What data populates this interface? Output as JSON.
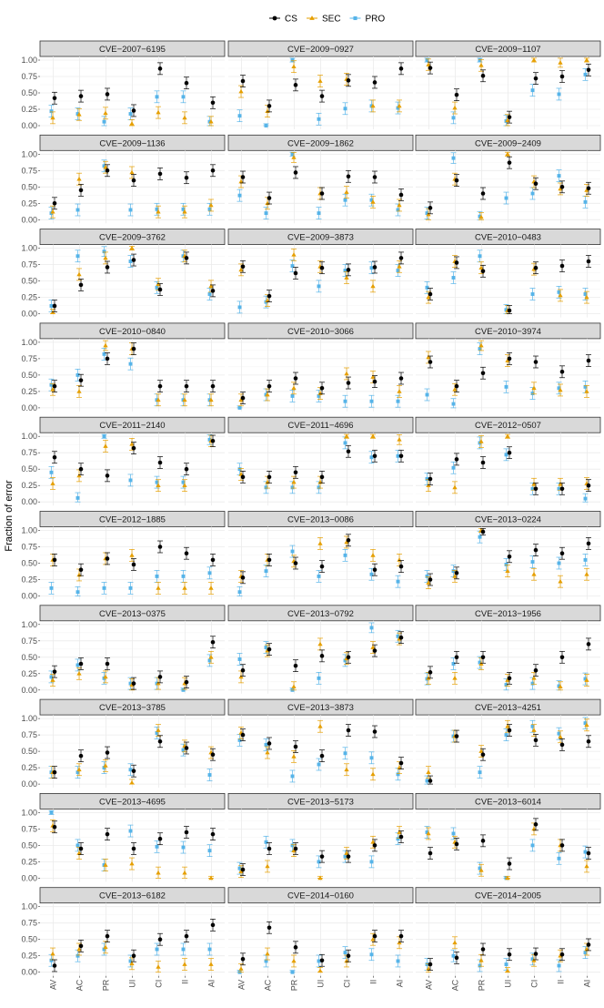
{
  "chart_data": {
    "type": "scatter",
    "subtype": "point-with-errorbars-faceted",
    "ylabel": "Fraction of error",
    "xlabel": "",
    "ylim": [
      0,
      1
    ],
    "yticks": [
      0.0,
      0.25,
      0.5,
      0.75,
      1.0
    ],
    "ytick_labels": [
      "0.00",
      "0.25",
      "0.50",
      "0.75",
      "1.00"
    ],
    "categories": [
      "AV",
      "AC",
      "PR",
      "UI",
      "CI",
      "II",
      "AI"
    ],
    "legend_position": "top",
    "series": [
      {
        "name": "CS",
        "color": "#000000",
        "shape": "circle"
      },
      {
        "name": "SEC",
        "color": "#E69F00",
        "shape": "triangle"
      },
      {
        "name": "PRO",
        "color": "#56B4E9",
        "shape": "square"
      }
    ],
    "panels": [
      {
        "title": "CVE−2007−6195",
        "CS": [
          0.42,
          0.45,
          0.48,
          0.23,
          0.87,
          0.65,
          0.35
        ],
        "SEC": [
          0.12,
          0.17,
          0.19,
          0.03,
          0.2,
          0.12,
          0.06
        ],
        "PRO": [
          0.22,
          0.18,
          0.06,
          0.18,
          0.44,
          0.44,
          0.06
        ]
      },
      {
        "title": "CVE−2009−0927",
        "CS": [
          0.68,
          0.3,
          0.62,
          0.45,
          0.69,
          0.66,
          0.87
        ],
        "SEC": [
          0.52,
          0.22,
          0.9,
          0.68,
          0.71,
          0.3,
          0.3
        ],
        "PRO": [
          0.15,
          0.0,
          1.0,
          0.1,
          0.26,
          0.3,
          0.27
        ]
      },
      {
        "title": "CVE−2009−1107",
        "CS": [
          0.88,
          0.47,
          0.76,
          0.13,
          0.72,
          0.75,
          0.85
        ],
        "SEC": [
          0.93,
          0.27,
          0.92,
          0.08,
          1.0,
          0.96,
          1.0
        ],
        "PRO": [
          1.0,
          0.12,
          1.0,
          0.07,
          0.54,
          0.48,
          0.78
        ]
      },
      {
        "title": "CVE−2009−1136",
        "CS": [
          0.25,
          0.45,
          0.75,
          0.6,
          0.7,
          0.64,
          0.75
        ],
        "SEC": [
          0.12,
          0.62,
          0.8,
          0.72,
          0.12,
          0.12,
          0.22
        ],
        "PRO": [
          0.1,
          0.15,
          0.82,
          0.15,
          0.16,
          0.16,
          0.16
        ]
      },
      {
        "title": "CVE−2009−1862",
        "CS": [
          0.65,
          0.33,
          0.72,
          0.4,
          0.66,
          0.65,
          0.38
        ],
        "SEC": [
          0.58,
          0.25,
          0.95,
          0.4,
          0.42,
          0.27,
          0.22
        ],
        "PRO": [
          0.37,
          0.1,
          1.0,
          0.1,
          0.3,
          0.3,
          0.15
        ]
      },
      {
        "title": "CVE−2009−2409",
        "CS": [
          0.18,
          0.6,
          0.4,
          0.87,
          0.55,
          0.5,
          0.48
        ],
        "SEC": [
          0.08,
          0.62,
          0.04,
          1.0,
          0.58,
          0.47,
          0.45
        ],
        "PRO": [
          0.1,
          0.94,
          0.05,
          0.33,
          0.4,
          0.67,
          0.27
        ]
      },
      {
        "title": "CVE−2009−3762",
        "CS": [
          0.12,
          0.44,
          0.71,
          0.82,
          0.37,
          0.85,
          0.35
        ],
        "SEC": [
          0.02,
          0.6,
          0.85,
          1.0,
          0.45,
          0.88,
          0.42
        ],
        "PRO": [
          0.12,
          0.88,
          0.95,
          0.8,
          0.4,
          0.88,
          0.3
        ]
      },
      {
        "title": "CVE−2009−3873",
        "CS": [
          0.72,
          0.27,
          0.62,
          0.7,
          0.67,
          0.71,
          0.85
        ],
        "SEC": [
          0.67,
          0.2,
          0.9,
          0.72,
          0.55,
          0.42,
          0.72
        ],
        "PRO": [
          0.1,
          0.18,
          0.73,
          0.42,
          0.66,
          0.7,
          0.66
        ]
      },
      {
        "title": "CVE−2010−0483",
        "CS": [
          0.3,
          0.78,
          0.65,
          0.05,
          0.7,
          0.73,
          0.8
        ],
        "SEC": [
          0.25,
          0.8,
          0.7,
          0.05,
          0.68,
          0.28,
          0.25
        ],
        "PRO": [
          0.4,
          0.55,
          0.88,
          0.06,
          0.3,
          0.33,
          0.3
        ]
      },
      {
        "title": "CVE−2010−0840",
        "CS": [
          0.33,
          0.42,
          0.75,
          0.9,
          0.33,
          0.33,
          0.33
        ],
        "SEC": [
          0.28,
          0.25,
          0.95,
          0.9,
          0.12,
          0.12,
          0.12
        ],
        "PRO": [
          0.35,
          0.5,
          0.82,
          0.67,
          0.12,
          0.12,
          0.12
        ]
      },
      {
        "title": "CVE−2010−3066",
        "CS": [
          0.15,
          0.33,
          0.45,
          0.3,
          0.38,
          0.4,
          0.45
        ],
        "SEC": [
          0.12,
          0.2,
          0.3,
          0.22,
          0.52,
          0.47,
          0.25
        ],
        "PRO": [
          0.0,
          0.2,
          0.18,
          0.18,
          0.1,
          0.1,
          0.1
        ]
      },
      {
        "title": "CVE−2010−3974",
        "CS": [
          0.7,
          0.33,
          0.53,
          0.75,
          0.7,
          0.55,
          0.72
        ],
        "SEC": [
          0.77,
          0.28,
          0.95,
          0.72,
          0.3,
          0.27,
          0.25
        ],
        "PRO": [
          0.2,
          0.06,
          0.9,
          0.32,
          0.22,
          0.3,
          0.32
        ]
      },
      {
        "title": "CVE−2011−2140",
        "CS": [
          0.68,
          0.5,
          0.4,
          0.82,
          0.6,
          0.5,
          0.93
        ],
        "SEC": [
          0.28,
          0.4,
          0.85,
          0.88,
          0.25,
          0.25,
          0.93
        ],
        "PRO": [
          0.45,
          0.06,
          1.0,
          0.33,
          0.3,
          0.3,
          0.95
        ]
      },
      {
        "title": "CVE−2011−4696",
        "CS": [
          0.38,
          0.38,
          0.45,
          0.38,
          0.77,
          0.7,
          0.7
        ],
        "SEC": [
          0.42,
          0.3,
          0.3,
          0.3,
          1.0,
          1.0,
          0.95
        ],
        "PRO": [
          0.5,
          0.22,
          0.22,
          0.22,
          0.9,
          0.68,
          0.7
        ]
      },
      {
        "title": "CVE−2012−0507",
        "CS": [
          0.35,
          0.65,
          0.6,
          0.75,
          0.2,
          0.2,
          0.25
        ],
        "SEC": [
          0.25,
          0.22,
          0.92,
          1.0,
          0.27,
          0.27,
          0.28
        ],
        "PRO": [
          0.35,
          0.52,
          0.9,
          0.72,
          0.2,
          0.2,
          0.05
        ]
      },
      {
        "title": "CVE−2012−1885",
        "CS": [
          0.55,
          0.4,
          0.57,
          0.48,
          0.75,
          0.65,
          0.55
        ],
        "SEC": [
          0.55,
          0.32,
          0.57,
          0.62,
          0.12,
          0.12,
          0.12
        ],
        "PRO": [
          0.12,
          0.06,
          0.12,
          0.12,
          0.3,
          0.3,
          0.35
        ]
      },
      {
        "title": "CVE−2013−0086",
        "CS": [
          0.28,
          0.55,
          0.5,
          0.45,
          0.85,
          0.4,
          0.45
        ],
        "SEC": [
          0.3,
          0.55,
          0.53,
          0.8,
          0.82,
          0.62,
          0.55
        ],
        "PRO": [
          0.06,
          0.38,
          0.68,
          0.3,
          0.62,
          0.33,
          0.22
        ]
      },
      {
        "title": "CVE−2013−0224",
        "CS": [
          0.25,
          0.35,
          0.98,
          0.6,
          0.7,
          0.65,
          0.8
        ],
        "SEC": [
          0.2,
          0.3,
          1.0,
          0.38,
          0.33,
          0.22,
          0.33
        ],
        "PRO": [
          0.3,
          0.38,
          0.9,
          0.48,
          0.52,
          0.5,
          0.55
        ]
      },
      {
        "title": "CVE−2013−0375",
        "CS": [
          0.28,
          0.4,
          0.4,
          0.1,
          0.2,
          0.12,
          0.73
        ],
        "SEC": [
          0.15,
          0.25,
          0.2,
          0.08,
          0.1,
          0.1,
          0.5
        ],
        "PRO": [
          0.2,
          0.38,
          0.18,
          0.1,
          0.1,
          0.0,
          0.45
        ]
      },
      {
        "title": "CVE−2013−0792",
        "CS": [
          0.3,
          0.62,
          0.37,
          0.52,
          0.5,
          0.6,
          0.8
        ],
        "SEC": [
          0.2,
          0.6,
          0.05,
          0.7,
          0.48,
          0.65,
          0.78
        ],
        "PRO": [
          0.47,
          0.65,
          0.0,
          0.18,
          0.45,
          0.95,
          0.82
        ]
      },
      {
        "title": "CVE−2013−1956",
        "CS": [
          0.27,
          0.5,
          0.5,
          0.18,
          0.3,
          0.5,
          0.7
        ],
        "SEC": [
          0.18,
          0.18,
          0.4,
          0.15,
          0.18,
          0.05,
          0.15
        ],
        "PRO": [
          0.17,
          0.4,
          0.42,
          0.08,
          0.1,
          0.06,
          0.17
        ]
      },
      {
        "title": "CVE−2013−3785",
        "CS": [
          0.18,
          0.43,
          0.48,
          0.2,
          0.65,
          0.55,
          0.45
        ],
        "SEC": [
          0.18,
          0.22,
          0.28,
          0.02,
          0.82,
          0.58,
          0.48
        ],
        "PRO": [
          0.18,
          0.18,
          0.25,
          0.22,
          0.78,
          0.52,
          0.14
        ]
      },
      {
        "title": "CVE−2013−3873",
        "CS": [
          0.75,
          0.62,
          0.57,
          0.43,
          0.82,
          0.8,
          0.32
        ],
        "SEC": [
          0.78,
          0.48,
          0.42,
          0.88,
          0.22,
          0.15,
          0.25
        ],
        "PRO": [
          0.67,
          0.6,
          0.12,
          0.3,
          0.47,
          0.4,
          0.15
        ]
      },
      {
        "title": "CVE−2013−4251",
        "CS": [
          0.05,
          0.73,
          0.45,
          0.82,
          0.67,
          0.6,
          0.65
        ],
        "SEC": [
          0.18,
          0.73,
          0.5,
          0.88,
          0.82,
          0.72,
          0.9
        ],
        "PRO": [
          0.05,
          0.73,
          0.18,
          0.75,
          0.88,
          0.77,
          0.93
        ]
      },
      {
        "title": "CVE−2013−4695",
        "CS": [
          0.78,
          0.45,
          0.67,
          0.45,
          0.6,
          0.7,
          0.67
        ],
        "SEC": [
          0.8,
          0.38,
          0.2,
          0.22,
          0.08,
          0.08,
          0.0
        ],
        "PRO": [
          1.0,
          0.5,
          0.2,
          0.72,
          0.48,
          0.47,
          0.42
        ]
      },
      {
        "title": "CVE−2013−5173",
        "CS": [
          0.13,
          0.45,
          0.45,
          0.33,
          0.33,
          0.5,
          0.63
        ],
        "SEC": [
          0.1,
          0.18,
          0.42,
          0.0,
          0.38,
          0.55,
          0.7
        ],
        "PRO": [
          0.15,
          0.55,
          0.5,
          0.25,
          0.33,
          0.25,
          0.6
        ]
      },
      {
        "title": "CVE−2013−6014",
        "CS": [
          0.38,
          0.52,
          0.57,
          0.22,
          0.82,
          0.5,
          0.38
        ],
        "SEC": [
          0.68,
          0.55,
          0.12,
          0.0,
          0.75,
          0.5,
          0.18
        ],
        "PRO": [
          0.7,
          0.68,
          0.15,
          0.0,
          0.5,
          0.3,
          0.4
        ]
      },
      {
        "title": "CVE−2013−6182",
        "CS": [
          0.1,
          0.4,
          0.55,
          0.25,
          0.5,
          0.55,
          0.72
        ],
        "SEC": [
          0.28,
          0.35,
          0.38,
          0.13,
          0.08,
          0.12,
          0.12
        ],
        "PRO": [
          0.18,
          0.25,
          0.35,
          0.17,
          0.35,
          0.35,
          0.35
        ]
      },
      {
        "title": "CVE−2014−0160",
        "CS": [
          0.2,
          0.68,
          0.38,
          0.18,
          0.25,
          0.55,
          0.55
        ],
        "SEC": [
          0.05,
          0.28,
          0.17,
          0.02,
          0.17,
          0.5,
          0.45
        ],
        "PRO": [
          0.0,
          0.17,
          0.0,
          0.17,
          0.3,
          0.27,
          0.17
        ]
      },
      {
        "title": "CVE−2014−2005",
        "CS": [
          0.12,
          0.22,
          0.35,
          0.27,
          0.28,
          0.27,
          0.42
        ],
        "SEC": [
          0.05,
          0.45,
          0.18,
          0.02,
          0.18,
          0.25,
          0.35
        ],
        "PRO": [
          0.12,
          0.25,
          0.1,
          0.12,
          0.2,
          0.1,
          0.3
        ]
      }
    ]
  }
}
